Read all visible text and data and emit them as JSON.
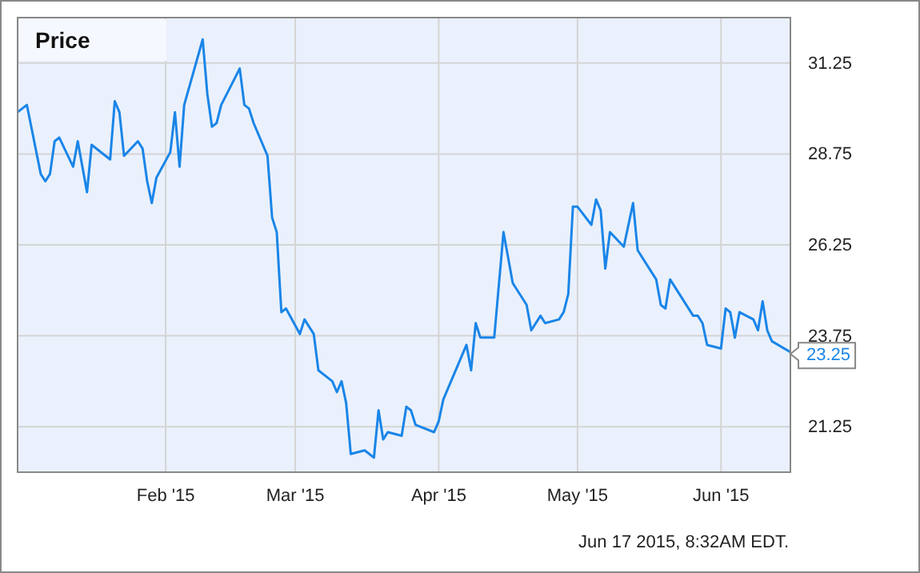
{
  "chart_data": {
    "type": "line",
    "title": "Price",
    "x": [
      "2014-12-31",
      "2015-01-02",
      "2015-01-05",
      "2015-01-06",
      "2015-01-07",
      "2015-01-08",
      "2015-01-09",
      "2015-01-12",
      "2015-01-13",
      "2015-01-15",
      "2015-01-16",
      "2015-01-20",
      "2015-01-21",
      "2015-01-22",
      "2015-01-23",
      "2015-01-26",
      "2015-01-27",
      "2015-01-28",
      "2015-01-29",
      "2015-01-30",
      "2015-02-02",
      "2015-02-03",
      "2015-02-04",
      "2015-02-05",
      "2015-02-09",
      "2015-02-10",
      "2015-02-11",
      "2015-02-12",
      "2015-02-13",
      "2015-02-17",
      "2015-02-18",
      "2015-02-19",
      "2015-02-20",
      "2015-02-23",
      "2015-02-24",
      "2015-02-25",
      "2015-02-26",
      "2015-02-27",
      "2015-03-02",
      "2015-03-03",
      "2015-03-05",
      "2015-03-06",
      "2015-03-09",
      "2015-03-10",
      "2015-03-11",
      "2015-03-12",
      "2015-03-13",
      "2015-03-16",
      "2015-03-17",
      "2015-03-18",
      "2015-03-19",
      "2015-03-20",
      "2015-03-21",
      "2015-03-24",
      "2015-03-25",
      "2015-03-26",
      "2015-03-27",
      "2015-03-31",
      "2015-04-01",
      "2015-04-02",
      "2015-04-07",
      "2015-04-08",
      "2015-04-09",
      "2015-04-10",
      "2015-04-13",
      "2015-04-15",
      "2015-04-17",
      "2015-04-20",
      "2015-04-21",
      "2015-04-23",
      "2015-04-24",
      "2015-04-27",
      "2015-04-28",
      "2015-04-29",
      "2015-04-30",
      "2015-05-01",
      "2015-05-04",
      "2015-05-05",
      "2015-05-06",
      "2015-05-07",
      "2015-05-08",
      "2015-05-11",
      "2015-05-13",
      "2015-05-14",
      "2015-05-17",
      "2015-05-18",
      "2015-05-19",
      "2015-05-20",
      "2015-05-21",
      "2015-05-26",
      "2015-05-27",
      "2015-05-28",
      "2015-05-29",
      "2015-06-01",
      "2015-06-02",
      "2015-06-03",
      "2015-06-04",
      "2015-06-05",
      "2015-06-08",
      "2015-06-09",
      "2015-06-10",
      "2015-06-11",
      "2015-06-12",
      "2015-06-16"
    ],
    "series": [
      {
        "color": "#1a85e8",
        "values": [
          29.9,
          30.1,
          28.2,
          28.0,
          28.2,
          29.1,
          29.2,
          28.4,
          29.1,
          27.7,
          29.0,
          28.6,
          30.2,
          29.9,
          28.7,
          29.1,
          28.9,
          28.0,
          27.4,
          28.1,
          28.8,
          29.9,
          28.4,
          30.1,
          31.9,
          30.4,
          29.5,
          29.6,
          30.1,
          31.1,
          30.1,
          30.0,
          29.6,
          28.7,
          27.0,
          26.6,
          24.4,
          24.5,
          23.8,
          24.2,
          23.8,
          22.8,
          22.5,
          22.2,
          22.5,
          21.9,
          20.5,
          20.6,
          20.5,
          20.4,
          21.7,
          20.9,
          21.1,
          21.0,
          21.8,
          21.7,
          21.3,
          21.1,
          21.4,
          22.0,
          23.5,
          22.8,
          24.1,
          23.7,
          23.7,
          26.6,
          25.2,
          24.6,
          23.9,
          24.3,
          24.1,
          24.2,
          24.4,
          24.9,
          27.3,
          27.3,
          26.8,
          27.5,
          27.2,
          25.6,
          26.6,
          26.2,
          27.4,
          26.1,
          25.5,
          25.3,
          24.6,
          24.5,
          25.3,
          24.3,
          24.3,
          24.1,
          23.5,
          23.4,
          24.5,
          24.4,
          23.7,
          24.4,
          24.2,
          23.9,
          24.7,
          23.9,
          23.6,
          23.3
        ]
      }
    ],
    "xlim": [
      "2014-12-31",
      "2015-06-16"
    ],
    "xticks": [
      {
        "value": "2015-02-01",
        "label": "Feb '15"
      },
      {
        "value": "2015-03-01",
        "label": "Mar '15"
      },
      {
        "value": "2015-04-01",
        "label": "Apr '15"
      },
      {
        "value": "2015-05-01",
        "label": "May '15"
      },
      {
        "value": "2015-06-01",
        "label": "Jun '15"
      }
    ],
    "ylim": [
      20.0,
      32.5
    ],
    "yticks": [
      21.25,
      23.75,
      26.25,
      28.75,
      31.25
    ],
    "grid": true,
    "annotations": [
      {
        "text": "23.25",
        "x": "2015-06-16",
        "y": 23.25
      },
      "Jun 17 2015, 8:32AM EDT."
    ]
  }
}
